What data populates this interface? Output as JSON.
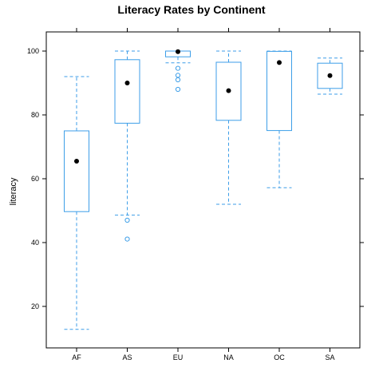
{
  "chart_data": {
    "type": "box",
    "title": "Literacy Rates by Continent",
    "xlabel": "",
    "ylabel": "literacy",
    "ylim": [
      7,
      106
    ],
    "yticks": [
      20,
      40,
      60,
      80,
      100
    ],
    "grid": false,
    "categories": [
      "AF",
      "AS",
      "EU",
      "NA",
      "OC",
      "SA"
    ],
    "boxes": [
      {
        "category": "AF",
        "whisker_low": 12.8,
        "q1": 49.7,
        "median": 65.5,
        "q3": 75.0,
        "whisker_high": 92.0,
        "outliers": []
      },
      {
        "category": "AS",
        "whisker_low": 48.6,
        "q1": 77.4,
        "median": 90.0,
        "q3": 97.3,
        "whisker_high": 100.0,
        "outliers": [
          47.0,
          41.1
        ]
      },
      {
        "category": "EU",
        "whisker_low": 96.3,
        "q1": 98.2,
        "median": 99.8,
        "q3": 100.0,
        "whisker_high": 100.0,
        "outliers": [
          94.6,
          92.4,
          91.0,
          88.0
        ]
      },
      {
        "category": "NA",
        "whisker_low": 52.0,
        "q1": 78.3,
        "median": 87.6,
        "q3": 96.5,
        "whisker_high": 100.0,
        "outliers": []
      },
      {
        "category": "OC",
        "whisker_low": 57.2,
        "q1": 75.1,
        "median": 96.4,
        "q3": 99.9,
        "whisker_high": 100.0,
        "outliers": []
      },
      {
        "category": "SA",
        "whisker_low": 86.5,
        "q1": 88.3,
        "median": 92.3,
        "q3": 96.2,
        "whisker_high": 97.8,
        "outliers": []
      }
    ],
    "colors": {
      "box": "#3d9ee8",
      "median_dot": "#000000",
      "frame": "#000000"
    }
  }
}
